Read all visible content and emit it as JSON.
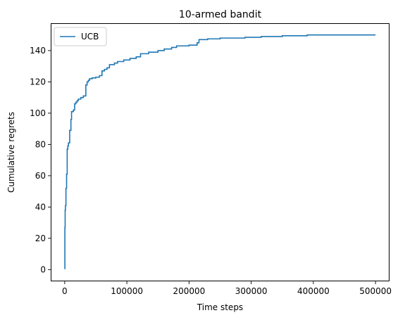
{
  "chart_data": {
    "type": "line",
    "title": "10-armed bandit",
    "xlabel": "Time steps",
    "ylabel": "Cumulative regrets",
    "xlim": [
      -22500,
      522500
    ],
    "ylim": [
      -7.5,
      157.5
    ],
    "xticks": [
      0,
      100000,
      200000,
      300000,
      400000,
      500000
    ],
    "xtick_labels": [
      "0",
      "100000",
      "200000",
      "300000",
      "400000",
      "500000"
    ],
    "yticks": [
      0,
      20,
      40,
      60,
      80,
      100,
      120,
      140
    ],
    "ytick_labels": [
      "0",
      "20",
      "40",
      "60",
      "80",
      "100",
      "120",
      "140"
    ],
    "grid": false,
    "legend_position": "top-left",
    "series": [
      {
        "name": "UCB",
        "color": "#1f77b4",
        "x": [
          0,
          300,
          700,
          1200,
          2000,
          3000,
          4000,
          5000,
          6000,
          8000,
          10000,
          11000,
          14000,
          16000,
          18000,
          20000,
          22000,
          26000,
          30000,
          34000,
          36000,
          38000,
          40000,
          44000,
          50000,
          56000,
          60000,
          64000,
          68000,
          72000,
          80000,
          85000,
          95000,
          105000,
          115000,
          122000,
          135000,
          150000,
          160000,
          172000,
          180000,
          200000,
          213000,
          216000,
          230000,
          250000,
          290000,
          316000,
          350000,
          390000,
          450000,
          490000,
          500000
        ],
        "values": [
          0.5,
          27,
          38,
          41,
          52,
          61,
          77,
          79,
          81,
          89,
          96,
          101,
          102,
          106,
          107,
          108,
          109,
          110,
          111,
          118,
          120,
          121,
          122,
          122.5,
          123,
          124,
          127,
          128,
          129,
          131,
          132,
          133,
          134,
          135,
          136,
          138,
          139,
          140,
          141,
          142,
          143,
          143.5,
          145,
          147,
          147.5,
          148,
          148.5,
          149,
          149.5,
          150,
          150,
          150,
          150
        ]
      }
    ]
  }
}
